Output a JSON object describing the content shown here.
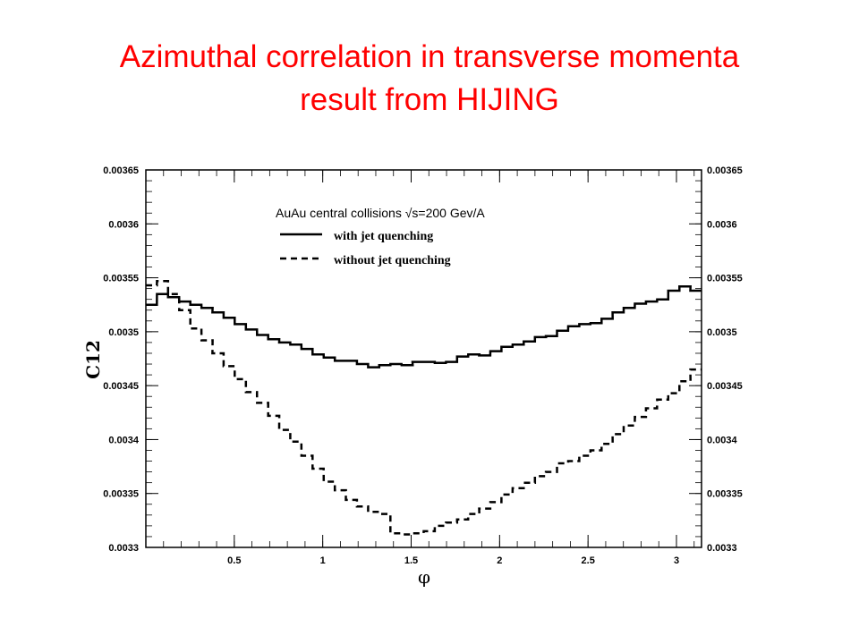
{
  "slide": {
    "title_line1": "Azimuthal correlation in transverse momenta",
    "title_line2": "result from HIJING"
  },
  "colors": {
    "title": "#ff0000",
    "series": "#000000"
  },
  "chart_data": {
    "type": "line",
    "title": "",
    "xlabel": "φ",
    "ylabel": "C12",
    "xlim": [
      0.0,
      3.1416
    ],
    "ylim": [
      0.0033,
      0.00365
    ],
    "x_ticks": [
      0.5,
      1,
      1.5,
      2,
      2.5,
      3
    ],
    "x_tick_labels": [
      "0.5",
      "1",
      "1.5",
      "2",
      "2.5",
      "3"
    ],
    "y_ticks": [
      0.0033,
      0.00335,
      0.0034,
      0.00345,
      0.0035,
      0.00355,
      0.0036,
      0.00365
    ],
    "y_tick_labels": [
      "0.0033",
      "0.00335",
      "0.0034",
      "0.00345",
      "0.0035",
      "0.00355",
      "0.0036",
      "0.00365"
    ],
    "grid": false,
    "legend_position": "top-center",
    "legend_header": "AuAu central collisions √s=200 Gev/A",
    "bin_width": 0.0628,
    "bin_centers": [
      0.031,
      0.094,
      0.157,
      0.22,
      0.283,
      0.346,
      0.408,
      0.471,
      0.534,
      0.597,
      0.66,
      0.723,
      0.785,
      0.848,
      0.911,
      0.974,
      1.037,
      1.1,
      1.162,
      1.225,
      1.288,
      1.351,
      1.414,
      1.477,
      1.539,
      1.602,
      1.665,
      1.728,
      1.791,
      1.854,
      1.916,
      1.979,
      2.042,
      2.105,
      2.168,
      2.231,
      2.293,
      2.356,
      2.419,
      2.482,
      2.545,
      2.608,
      2.67,
      2.733,
      2.796,
      2.859,
      2.922,
      2.985,
      3.048,
      3.11
    ],
    "series": [
      {
        "name": "with jet quenching",
        "style": "solid",
        "values": [
          0.003525,
          0.003535,
          0.003532,
          0.003528,
          0.003525,
          0.003522,
          0.003518,
          0.003513,
          0.003507,
          0.003502,
          0.003497,
          0.003493,
          0.00349,
          0.003488,
          0.003484,
          0.003479,
          0.003476,
          0.003473,
          0.003473,
          0.00347,
          0.003467,
          0.003469,
          0.00347,
          0.003469,
          0.003472,
          0.003472,
          0.003471,
          0.003472,
          0.003477,
          0.003479,
          0.003478,
          0.003482,
          0.003486,
          0.003488,
          0.003491,
          0.003495,
          0.003496,
          0.003501,
          0.003505,
          0.003507,
          0.003508,
          0.003512,
          0.003518,
          0.003522,
          0.003526,
          0.003528,
          0.00353,
          0.003538,
          0.003542,
          0.003538
        ]
      },
      {
        "name": "without jet quenching",
        "style": "dashed",
        "values": [
          0.003543,
          0.003547,
          0.003535,
          0.00352,
          0.003503,
          0.003492,
          0.00348,
          0.003468,
          0.003456,
          0.003444,
          0.003434,
          0.003422,
          0.003409,
          0.003398,
          0.003385,
          0.003373,
          0.003361,
          0.003353,
          0.003344,
          0.003338,
          0.003333,
          0.003331,
          0.003313,
          0.003312,
          0.003313,
          0.003315,
          0.00332,
          0.003323,
          0.003326,
          0.003331,
          0.003336,
          0.003342,
          0.003349,
          0.003355,
          0.00336,
          0.003366,
          0.00337,
          0.003378,
          0.00338,
          0.003385,
          0.00339,
          0.003396,
          0.003405,
          0.003413,
          0.003421,
          0.003429,
          0.003437,
          0.003443,
          0.003454,
          0.003465
        ]
      }
    ]
  }
}
